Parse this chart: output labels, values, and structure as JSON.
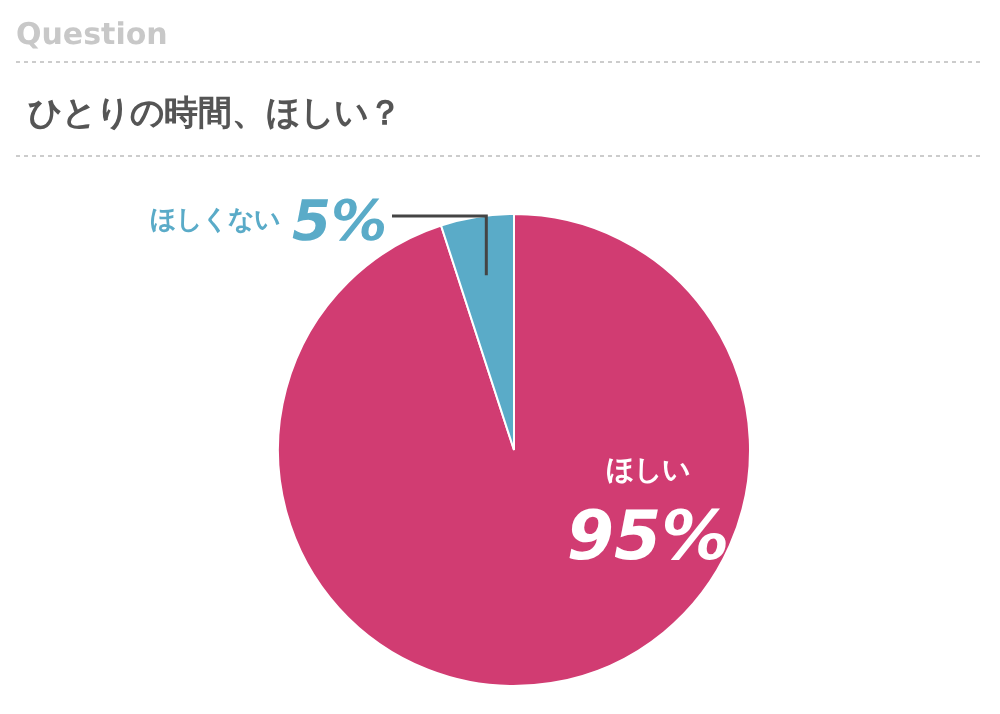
{
  "chart_data": {
    "type": "pie",
    "title": "ひとりの時間、ほしい？",
    "annotations": [
      "Question"
    ],
    "categories": [
      "ほしい",
      "ほしくない"
    ],
    "values": [
      95,
      5
    ],
    "colors": [
      "#d13c72",
      "#5aabc8"
    ],
    "value_labels": [
      "95%",
      "5%"
    ]
  }
}
